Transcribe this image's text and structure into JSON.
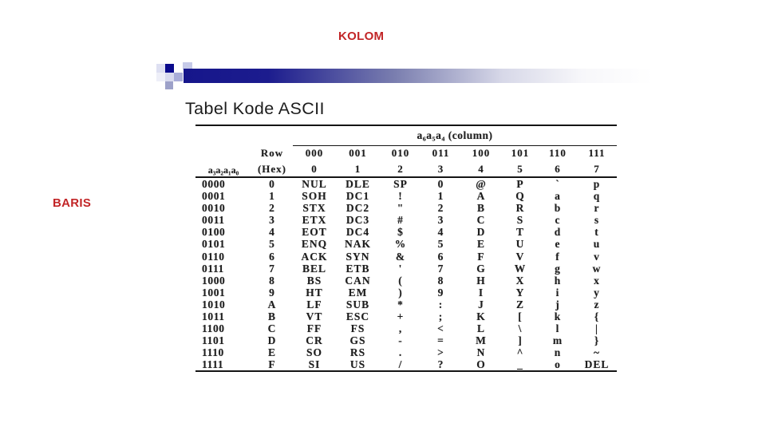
{
  "slide": {
    "kolom_label": "KOLOM",
    "baris_label": "BARIS",
    "title": "Tabel Kode ASCII",
    "accent_red": "#c22527",
    "accent_navy": "#16168b"
  },
  "table": {
    "group_header": "a₆a₅a₄ (column)",
    "row_binary_header": "a₃a₂a₁a₀",
    "row_hex_header_line1": "Row",
    "row_hex_header_line2": "(Hex)",
    "column_bits": [
      "000",
      "001",
      "010",
      "011",
      "100",
      "101",
      "110",
      "111"
    ],
    "column_digits": [
      "0",
      "1",
      "2",
      "3",
      "4",
      "5",
      "6",
      "7"
    ],
    "rows": [
      {
        "bin": "0000",
        "hex": "0",
        "cells": [
          "NUL",
          "DLE",
          "SP",
          "0",
          "@",
          "P",
          "`",
          "p"
        ]
      },
      {
        "bin": "0001",
        "hex": "1",
        "cells": [
          "SOH",
          "DC1",
          "!",
          "1",
          "A",
          "Q",
          "a",
          "q"
        ]
      },
      {
        "bin": "0010",
        "hex": "2",
        "cells": [
          "STX",
          "DC2",
          "\"",
          "2",
          "B",
          "R",
          "b",
          "r"
        ]
      },
      {
        "bin": "0011",
        "hex": "3",
        "cells": [
          "ETX",
          "DC3",
          "#",
          "3",
          "C",
          "S",
          "c",
          "s"
        ]
      },
      {
        "bin": "0100",
        "hex": "4",
        "cells": [
          "EOT",
          "DC4",
          "$",
          "4",
          "D",
          "T",
          "d",
          "t"
        ]
      },
      {
        "bin": "0101",
        "hex": "5",
        "cells": [
          "ENQ",
          "NAK",
          "%",
          "5",
          "E",
          "U",
          "e",
          "u"
        ]
      },
      {
        "bin": "0110",
        "hex": "6",
        "cells": [
          "ACK",
          "SYN",
          "&",
          "6",
          "F",
          "V",
          "f",
          "v"
        ]
      },
      {
        "bin": "0111",
        "hex": "7",
        "cells": [
          "BEL",
          "ETB",
          "'",
          "7",
          "G",
          "W",
          "g",
          "w"
        ]
      },
      {
        "bin": "1000",
        "hex": "8",
        "cells": [
          "BS",
          "CAN",
          "(",
          "8",
          "H",
          "X",
          "h",
          "x"
        ]
      },
      {
        "bin": "1001",
        "hex": "9",
        "cells": [
          "HT",
          "EM",
          ")",
          "9",
          "I",
          "Y",
          "i",
          "y"
        ]
      },
      {
        "bin": "1010",
        "hex": "A",
        "cells": [
          "LF",
          "SUB",
          "*",
          ":",
          "J",
          "Z",
          "j",
          "z"
        ]
      },
      {
        "bin": "1011",
        "hex": "B",
        "cells": [
          "VT",
          "ESC",
          "+",
          ";",
          "K",
          "[",
          "k",
          "{"
        ]
      },
      {
        "bin": "1100",
        "hex": "C",
        "cells": [
          "FF",
          "FS",
          ",",
          "<",
          "L",
          "\\",
          "l",
          "|"
        ]
      },
      {
        "bin": "1101",
        "hex": "D",
        "cells": [
          "CR",
          "GS",
          "-",
          "=",
          "M",
          "]",
          "m",
          "}"
        ]
      },
      {
        "bin": "1110",
        "hex": "E",
        "cells": [
          "SO",
          "RS",
          ".",
          ">",
          "N",
          "^",
          "n",
          "~"
        ]
      },
      {
        "bin": "1111",
        "hex": "F",
        "cells": [
          "SI",
          "US",
          "/",
          "?",
          "O",
          "_",
          "o",
          "DEL"
        ]
      }
    ]
  }
}
